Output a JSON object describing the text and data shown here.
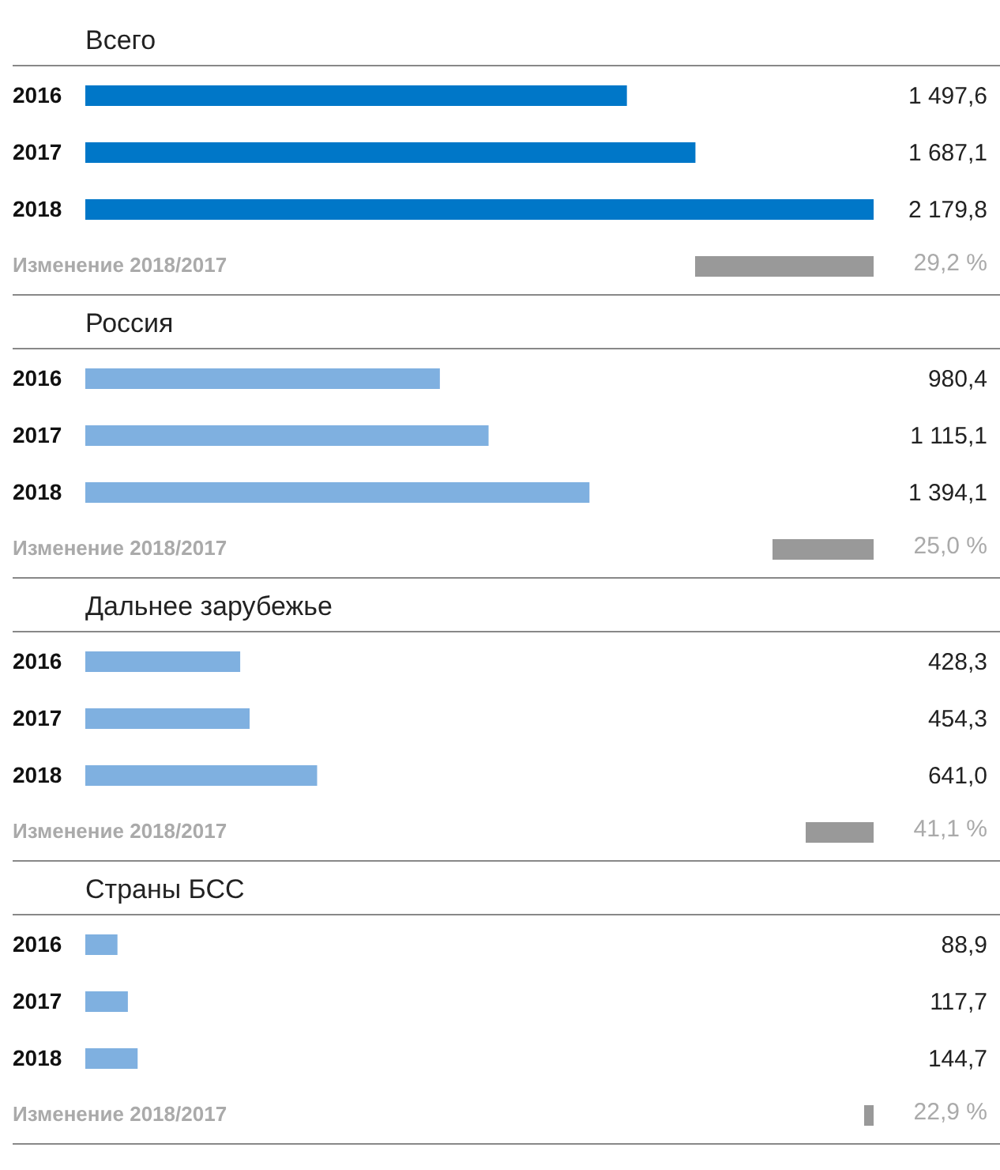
{
  "chart_data": [
    {
      "type": "bar",
      "orientation": "horizontal",
      "title": "Всего",
      "categories": [
        "2016",
        "2017",
        "2018"
      ],
      "values": [
        1497.6,
        1687.1,
        2179.8
      ],
      "color": "#0077c8",
      "value_labels": [
        "1 497,6",
        "1 687,1",
        "2 179,8"
      ],
      "tick_labels": false,
      "annotations": [
        "Изменение 2018/2017",
        "29,2 %"
      ]
    },
    {
      "type": "bar",
      "orientation": "horizontal",
      "title": "Россия",
      "categories": [
        "2016",
        "2017",
        "2018"
      ],
      "values": [
        980.4,
        1115.1,
        1394.1
      ],
      "color": "#7fb0e0",
      "value_labels": [
        "980,4",
        "1 115,1",
        "1 394,1"
      ],
      "tick_labels": false,
      "annotations": [
        "Изменение 2018/2017",
        "25,0 %"
      ]
    },
    {
      "type": "bar",
      "orientation": "horizontal",
      "title": "Дальнее зарубежье",
      "categories": [
        "2016",
        "2017",
        "2018"
      ],
      "values": [
        428.3,
        454.3,
        641.0
      ],
      "color": "#7fb0e0",
      "value_labels": [
        "428,3",
        "454,3",
        "641,0"
      ],
      "tick_labels": false,
      "annotations": [
        "Изменение 2018/2017",
        "41,1 %"
      ]
    },
    {
      "type": "bar",
      "orientation": "horizontal",
      "title": "Страны БСС",
      "categories": [
        "2016",
        "2017",
        "2018"
      ],
      "values": [
        88.9,
        117.7,
        144.7
      ],
      "color": "#7fb0e0",
      "value_labels": [
        "88,9",
        "117,7",
        "144,7"
      ],
      "tick_labels": false,
      "annotations": [
        "Изменение 2018/2017",
        "22,9 %"
      ]
    }
  ]
}
